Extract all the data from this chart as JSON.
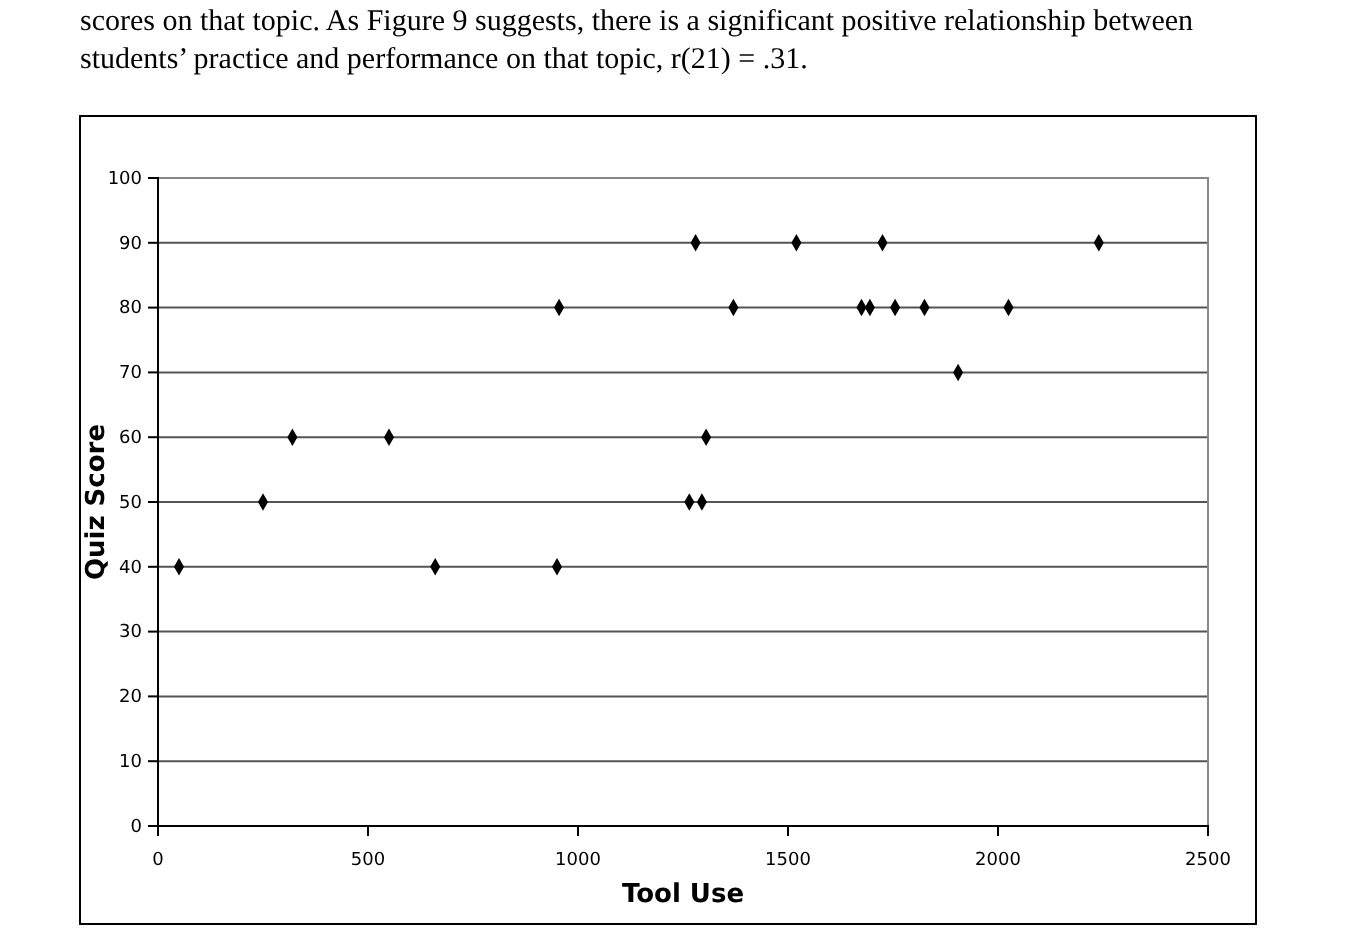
{
  "chart_data": {
    "type": "scatter",
    "annotations": [
      "scores on that topic. As Figure 9 suggests, there is a significant positive relationship between",
      "students’ practice and performance on that topic, r(21) = .31."
    ],
    "xlabel": "Tool Use",
    "ylabel": "Quiz Score",
    "x": [
      50,
      250,
      320,
      550,
      660,
      955,
      950,
      1265,
      1295,
      1280,
      1305,
      1520,
      1725,
      2240,
      1370,
      1675,
      1695,
      1755,
      1825,
      2025,
      1905
    ],
    "series": [
      {
        "color": "#000000",
        "values": [
          40,
          50,
          60,
          60,
          40,
          80,
          40,
          50,
          50,
          90,
          60,
          90,
          90,
          90,
          80,
          80,
          80,
          80,
          80,
          80,
          70
        ]
      }
    ],
    "xlim": [
      0,
      2500
    ],
    "xticks": [
      0,
      500,
      1000,
      1500,
      2000,
      2500
    ],
    "ylim": [
      0,
      100
    ],
    "yticks": [
      0,
      10,
      20,
      30,
      40,
      50,
      60,
      70,
      80,
      90,
      100
    ],
    "grid": "y",
    "marker": "diamond"
  }
}
